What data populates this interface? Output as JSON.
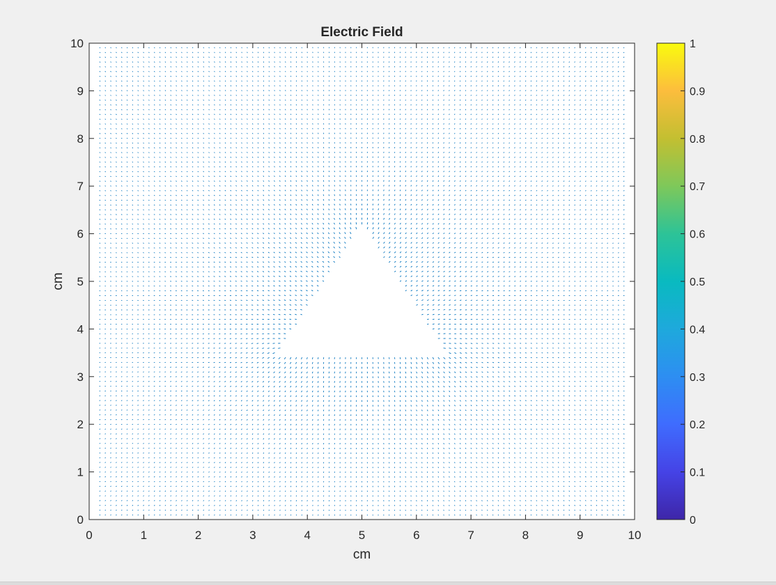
{
  "chart_data": {
    "type": "quiver",
    "title": "Electric Field",
    "xlabel": "cm",
    "ylabel": "cm",
    "xlim": [
      0,
      10
    ],
    "ylim": [
      0,
      10
    ],
    "xticks": [
      0,
      1,
      2,
      3,
      4,
      5,
      6,
      7,
      8,
      9,
      10
    ],
    "yticks": [
      0,
      1,
      2,
      3,
      4,
      5,
      6,
      7,
      8,
      9,
      10
    ],
    "grid": false,
    "vector_color": "#0072bd",
    "charged_region": {
      "shape": "triangle",
      "vertices": [
        [
          3.5,
          3.5
        ],
        [
          6.5,
          3.5
        ],
        [
          5.0,
          6.1
        ]
      ]
    },
    "field_grid": {
      "x_start": 0.2,
      "x_end": 9.8,
      "y_start": 0.1,
      "y_end": 9.9,
      "step": 0.1
    },
    "colorbar": {
      "limits": [
        0,
        1
      ],
      "ticks": [
        0,
        0.1,
        0.2,
        0.3,
        0.4,
        0.5,
        0.6,
        0.7,
        0.8,
        0.9,
        1
      ],
      "tick_labels": [
        "0",
        "0.1",
        "0.2",
        "0.3",
        "0.4",
        "0.5",
        "0.6",
        "0.7",
        "0.8",
        "0.9",
        "1"
      ],
      "colormap": "parula",
      "colormap_stops": [
        "#3e26a8",
        "#4543e6",
        "#3f6cfe",
        "#2d8ef2",
        "#1ea9dc",
        "#09bac0",
        "#2dc397",
        "#7ec85a",
        "#c3bf31",
        "#fcbd3d",
        "#f9fb0e"
      ]
    }
  }
}
